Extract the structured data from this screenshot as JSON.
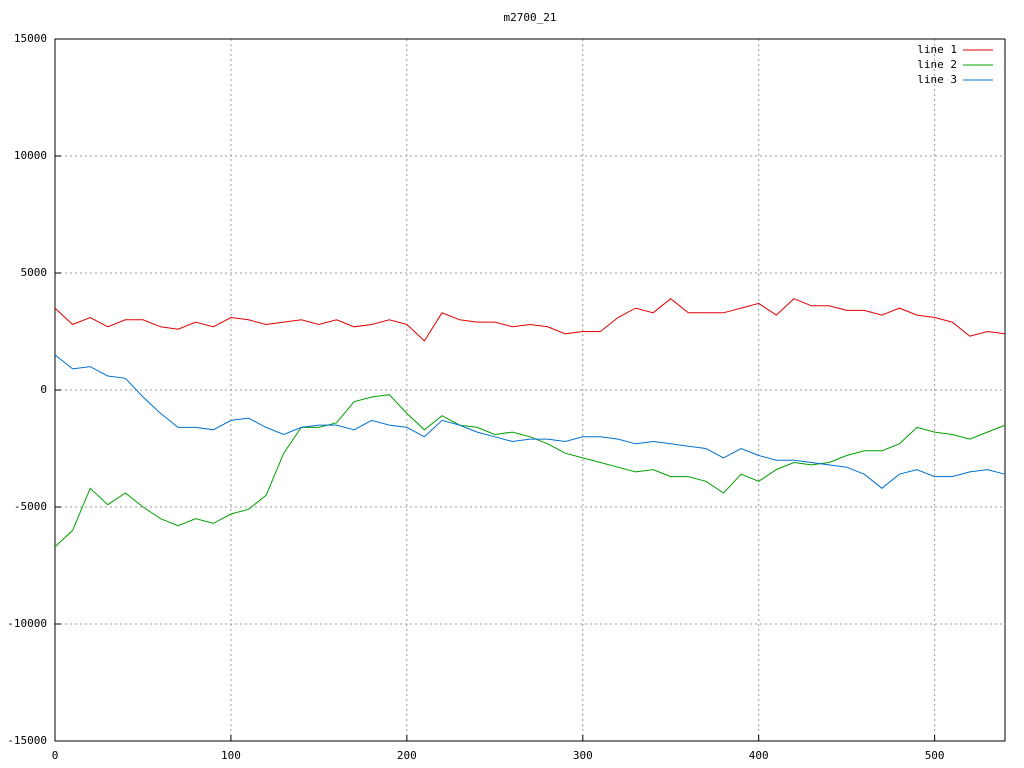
{
  "chart_data": {
    "type": "line",
    "title": "m2700_21",
    "x": [
      0,
      10,
      20,
      30,
      40,
      50,
      60,
      70,
      80,
      90,
      100,
      110,
      120,
      130,
      140,
      150,
      160,
      170,
      180,
      190,
      200,
      210,
      220,
      230,
      240,
      250,
      260,
      270,
      280,
      290,
      300,
      310,
      320,
      330,
      340,
      350,
      360,
      370,
      380,
      390,
      400,
      410,
      420,
      430,
      440,
      450,
      460,
      470,
      480,
      490,
      500,
      510,
      520,
      530,
      540
    ],
    "series": [
      {
        "name": "line 1",
        "color": "#e00000",
        "values": [
          3500,
          2800,
          3100,
          2700,
          3000,
          3000,
          2700,
          2600,
          2900,
          2700,
          3100,
          3000,
          2800,
          2900,
          3000,
          2800,
          3000,
          2700,
          2800,
          3000,
          2800,
          2100,
          3300,
          3000,
          2900,
          2900,
          2700,
          2800,
          2700,
          2400,
          2500,
          2500,
          3100,
          3500,
          3300,
          3900,
          3300,
          3300,
          3300,
          3500,
          3700,
          3200,
          3900,
          3600,
          3600,
          3400,
          3400,
          3200,
          3500,
          3200,
          3100,
          2900,
          2300,
          2500,
          2400
        ]
      },
      {
        "name": "line 2",
        "color": "#00a000",
        "values": [
          -6700,
          -6000,
          -4200,
          -4900,
          -4400,
          -5000,
          -5500,
          -5800,
          -5500,
          -5700,
          -5300,
          -5100,
          -4500,
          -2700,
          -1600,
          -1600,
          -1400,
          -500,
          -300,
          -200,
          -1000,
          -1700,
          -1100,
          -1500,
          -1600,
          -1900,
          -1800,
          -2000,
          -2300,
          -2700,
          -2900,
          -3100,
          -3300,
          -3500,
          -3400,
          -3700,
          -3700,
          -3900,
          -4400,
          -3600,
          -3900,
          -3400,
          -3100,
          -3200,
          -3100,
          -2800,
          -2600,
          -2600,
          -2300,
          -1600,
          -1800,
          -1900,
          -2100,
          -1800,
          -1500
        ]
      },
      {
        "name": "line 3",
        "color": "#0070d0",
        "values": [
          1500,
          900,
          1000,
          600,
          500,
          -300,
          -1000,
          -1600,
          -1600,
          -1700,
          -1300,
          -1200,
          -1600,
          -1900,
          -1600,
          -1500,
          -1500,
          -1700,
          -1300,
          -1500,
          -1600,
          -2000,
          -1300,
          -1500,
          -1800,
          -2000,
          -2200,
          -2100,
          -2100,
          -2200,
          -2000,
          -2000,
          -2100,
          -2300,
          -2200,
          -2300,
          -2400,
          -2500,
          -2900,
          -2500,
          -2800,
          -3000,
          -3000,
          -3100,
          -3200,
          -3300,
          -3600,
          -4200,
          -3600,
          -3400,
          -3700,
          -3700,
          -3500,
          -3400,
          -3600
        ]
      }
    ],
    "xlim": [
      0,
      540
    ],
    "xticks": [
      0,
      100,
      200,
      300,
      400,
      500
    ],
    "ylim": [
      -15000,
      15000
    ],
    "yticks": [
      -15000,
      -10000,
      -5000,
      0,
      5000,
      10000,
      15000
    ],
    "grid": true,
    "legend": "upper right"
  }
}
